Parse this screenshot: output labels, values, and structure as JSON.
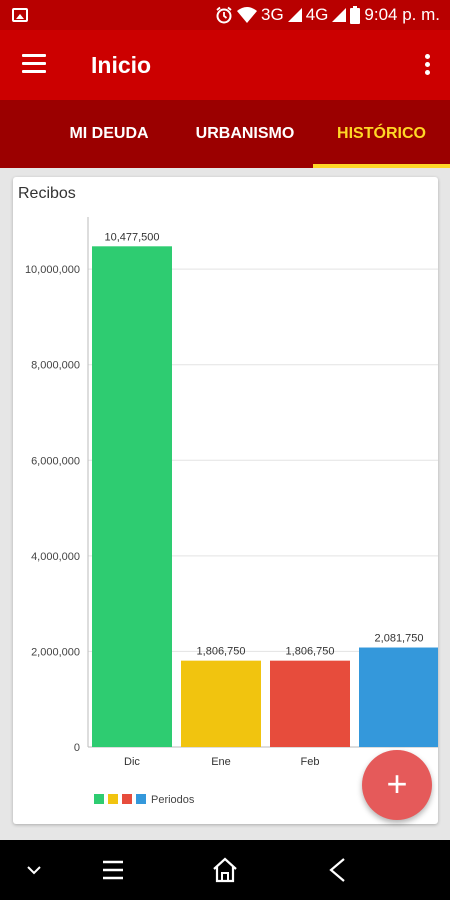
{
  "status_bar": {
    "network_3g": "3G",
    "network_4g": "4G",
    "time": "9:04 p. m.",
    "icons": [
      "image-icon",
      "alarm-icon",
      "wifi-icon",
      "signal-icon",
      "battery-icon"
    ]
  },
  "app_bar": {
    "title": "Inicio",
    "menu_icon": "hamburger-menu-icon",
    "more_icon": "more-vert-icon"
  },
  "tabs": [
    {
      "label": "MI DEUDA",
      "active": false
    },
    {
      "label": "URBANISMO",
      "active": false
    },
    {
      "label": "HISTÓRICO",
      "active": true
    }
  ],
  "colors": {
    "status_bar": "#b80000",
    "app_bar": "#cc0000",
    "tab_bar": "#9b0000",
    "tab_active": "#ffd726",
    "fab": "#e55a5a"
  },
  "card": {
    "title": "Recibos"
  },
  "chart_data": {
    "type": "bar",
    "title": "Recibos",
    "categories": [
      "Dic",
      "Ene",
      "Feb",
      "Mar"
    ],
    "values": [
      10477500,
      1806750,
      1806750,
      2081750
    ],
    "value_labels": [
      "10,477,500",
      "1,806,750",
      "1,806,750",
      "2,081,750"
    ],
    "colors": [
      "#2ecc71",
      "#f1c40f",
      "#e74c3c",
      "#3498db"
    ],
    "yticks": [
      0,
      2000000,
      4000000,
      6000000,
      8000000,
      10000000
    ],
    "ytick_labels": [
      "0",
      "2,000,000",
      "4,000,000",
      "6,000,000",
      "8,000,000",
      "10,000,000"
    ],
    "ylim": [
      0,
      11300000
    ],
    "legend": {
      "label": "Periodos",
      "position": "bottom-left"
    },
    "grid": true
  },
  "fab": {
    "label": "+",
    "icon": "add-icon"
  },
  "nav_bar": {
    "icons": [
      "chevron-down-icon",
      "recent-apps-icon",
      "home-icon",
      "back-icon"
    ]
  }
}
